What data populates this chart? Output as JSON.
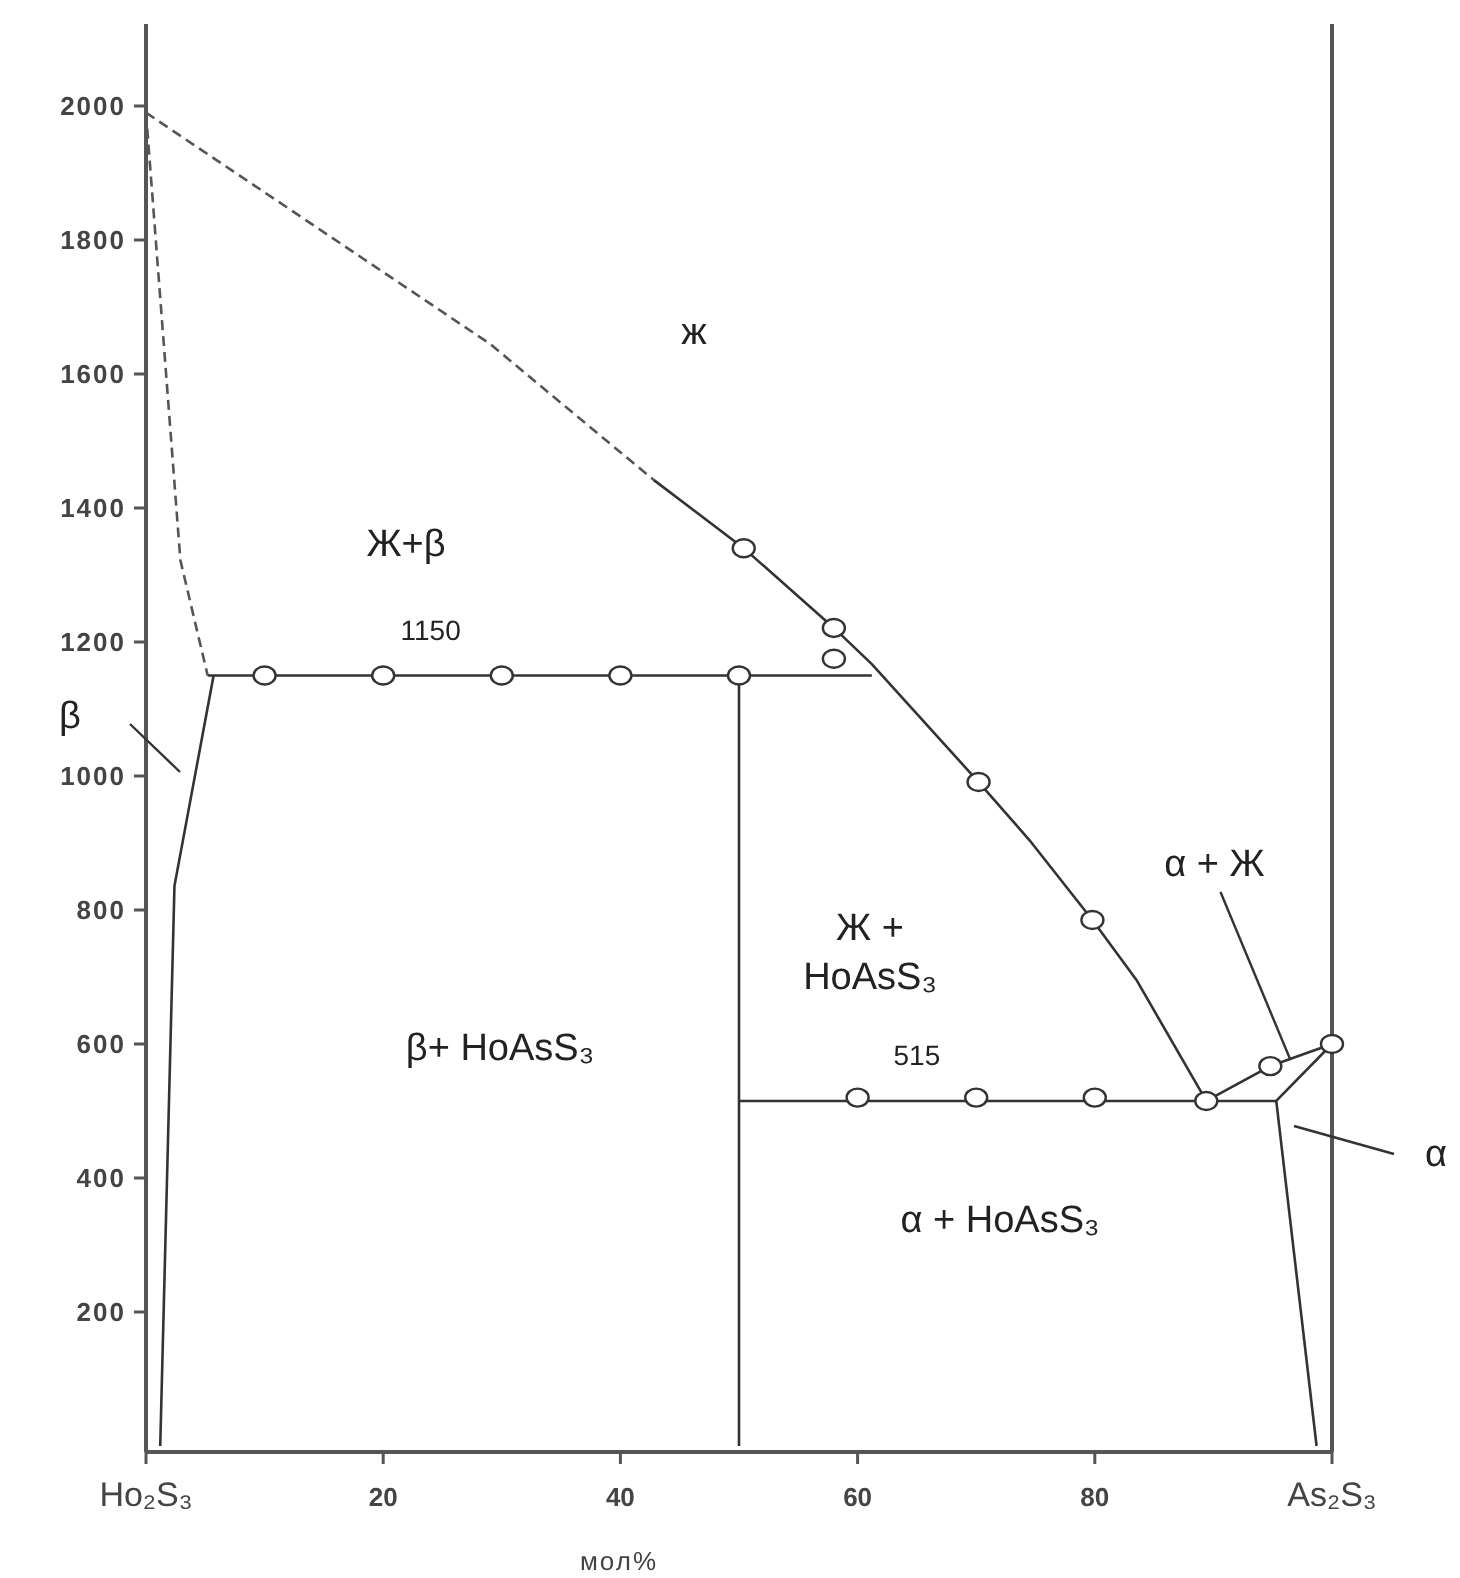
{
  "chart_data": {
    "type": "line",
    "xlabel": "мол%",
    "xlim": [
      0,
      100
    ],
    "ylim": [
      0,
      2000
    ],
    "xticks": [
      {
        "value": 0,
        "label": "Ho₂S₃"
      },
      20,
      40,
      60,
      80,
      {
        "value": 100,
        "label": "As₂S₃"
      }
    ],
    "yticks": [
      200,
      400,
      600,
      800,
      1000,
      1200,
      1400,
      1600,
      1800,
      2000
    ],
    "grid": false,
    "legend": false,
    "series": [
      {
        "type": "line",
        "line_style": "dashed",
        "color": "#555555",
        "x": [
          0,
          29,
          42.8
        ],
        "values": [
          1990,
          1645,
          1442
        ]
      },
      {
        "type": "line",
        "line_style": "solid",
        "color": "#333333",
        "x": [
          42.8,
          50.4,
          58,
          61.2,
          70.2,
          74.5,
          79.8,
          83.5,
          89.4
        ],
        "values": [
          1442,
          1340,
          1221,
          1167,
          991,
          904,
          785,
          696,
          515
        ]
      },
      {
        "type": "line",
        "line_style": "dashed",
        "color": "#555555",
        "x": [
          0,
          2.9,
          5.2
        ],
        "values": [
          1990,
          1322,
          1150
        ]
      },
      {
        "type": "line",
        "line_style": "solid",
        "color": "#333333",
        "x": [
          5.2,
          61.2
        ],
        "values": [
          1150,
          1150
        ]
      },
      {
        "type": "line",
        "line_style": "solid",
        "color": "#333333",
        "x": [
          5.7,
          2.4,
          1.2
        ],
        "values": [
          1150,
          836,
          0
        ]
      },
      {
        "type": "line",
        "line_style": "solid",
        "color": "#333333",
        "x": [
          50,
          50
        ],
        "values": [
          1150,
          0
        ]
      },
      {
        "type": "line",
        "line_style": "solid",
        "color": "#333333",
        "x": [
          50,
          95.3
        ],
        "values": [
          515,
          515
        ]
      },
      {
        "type": "line",
        "line_style": "solid",
        "color": "#333333",
        "x": [
          89.4,
          94.8,
          100
        ],
        "values": [
          515,
          567,
          600
        ]
      },
      {
        "type": "line",
        "line_style": "solid",
        "color": "#333333",
        "x": [
          95.3,
          100
        ],
        "values": [
          515,
          600
        ]
      },
      {
        "type": "line",
        "line_style": "solid",
        "color": "#333333",
        "x": [
          95.3,
          98.7
        ],
        "values": [
          515,
          0
        ]
      },
      {
        "type": "scatter",
        "marker": "circle",
        "color": "#333333",
        "x": [
          10,
          20,
          30,
          40,
          50,
          58,
          58,
          50.4,
          70.2,
          79.8,
          60,
          70,
          80,
          89.4,
          94.8,
          100
        ],
        "values": [
          1150,
          1150,
          1150,
          1150,
          1150,
          1175,
          1221,
          1340,
          991,
          785,
          520,
          520,
          520,
          515,
          567,
          600
        ]
      }
    ],
    "annotations": [
      "ж",
      "Ж+β",
      {
        "text": "1150",
        "x": 24,
        "y": 1150
      },
      "β+ HoAsS₃",
      "Ж +\nHoAsS₃",
      {
        "text": "515",
        "x": 65,
        "y": 515
      },
      "α + HoAsS₃",
      {
        "text": "α + Ж",
        "x": 96.5,
        "y": 576
      },
      "β",
      "α"
    ]
  }
}
